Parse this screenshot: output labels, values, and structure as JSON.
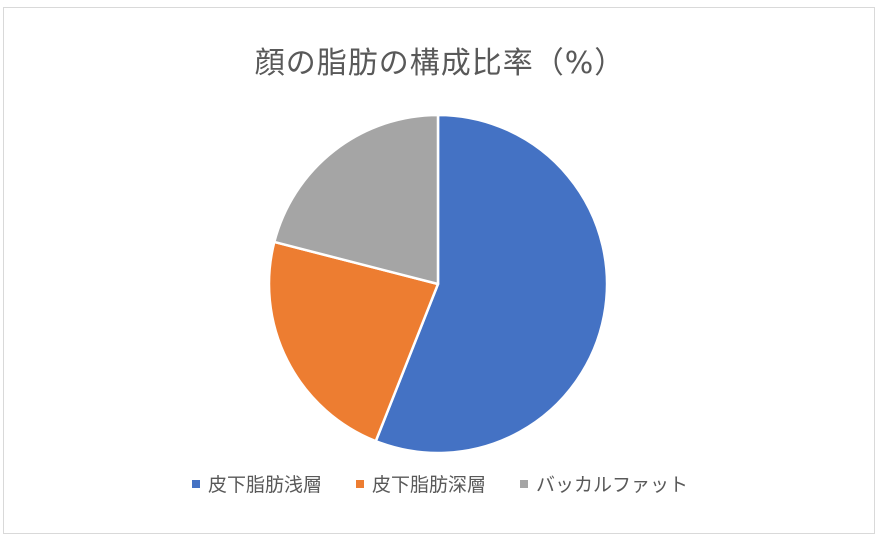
{
  "chart_data": {
    "type": "pie",
    "title": "顔の脂肪の構成比率（%）",
    "categories": [
      "皮下脂肪浅層",
      "皮下脂肪深層",
      "バッカルファット"
    ],
    "values": [
      56,
      23,
      21
    ],
    "colors": [
      "#4472c4",
      "#ed7d31",
      "#a5a5a5"
    ],
    "start_angle_deg": 0,
    "direction": "clockwise",
    "legend_position": "bottom"
  }
}
